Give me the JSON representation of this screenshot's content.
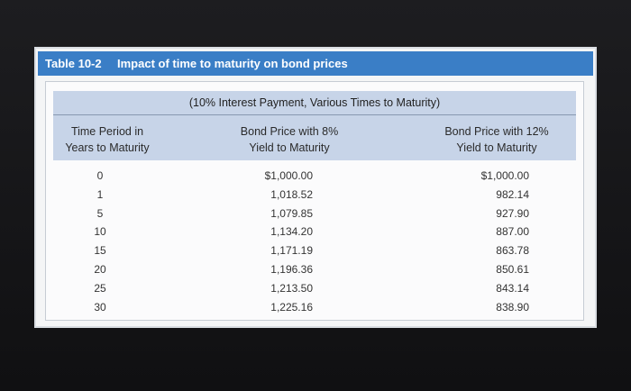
{
  "table": {
    "label": "Table 10-2",
    "title": "Impact of time to maturity on bond prices",
    "subtitle": "(10% Interest Payment, Various Times to Maturity)",
    "columns": [
      [
        "Time Period in",
        "Years to Maturity"
      ],
      [
        "Bond Price with 8%",
        "Yield to Maturity"
      ],
      [
        "Bond Price with 12%",
        "Yield to Maturity"
      ]
    ],
    "rows": [
      [
        "0",
        "$1,000.00",
        "$1,000.00"
      ],
      [
        "1",
        "1,018.52",
        "982.14"
      ],
      [
        "5",
        "1,079.85",
        "927.90"
      ],
      [
        "10",
        "1,134.20",
        "887.00"
      ],
      [
        "15",
        "1,171.19",
        "863.78"
      ],
      [
        "20",
        "1,196.36",
        "850.61"
      ],
      [
        "25",
        "1,213.50",
        "843.14"
      ],
      [
        "30",
        "1,225.16",
        "838.90"
      ]
    ]
  }
}
